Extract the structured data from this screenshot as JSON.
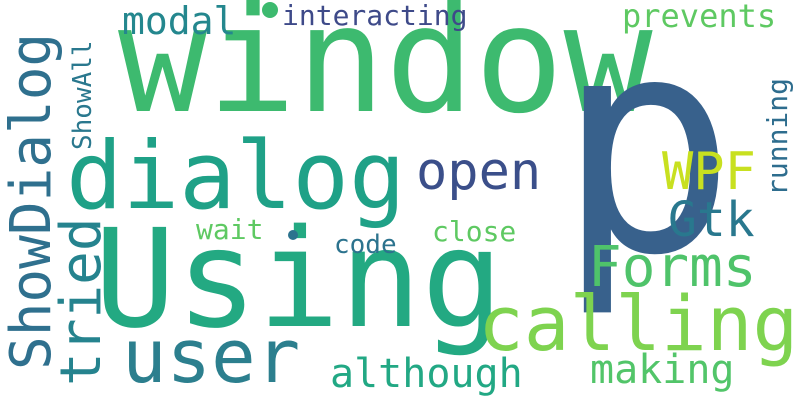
{
  "words": {
    "window": "window",
    "p": "p",
    "using": "Using",
    "dialog": "dialog",
    "calling": "calling",
    "user": "user",
    "showdialog": "ShowDialog",
    "tried": "tried",
    "forms": "Forms",
    "open": "open",
    "wpf": "WPF",
    "gtk": "Gtk",
    "although": "although",
    "making": "making",
    "modal": "modal",
    "interacting": "interacting",
    "prevents": "prevents",
    "running": "running",
    "showall": "ShowAll",
    "wait": "wait",
    "code": "code",
    "close": "close"
  },
  "colors": {
    "window": "#3dba6f",
    "p": "#38618c",
    "using": "#23a982",
    "dialog": "#1fa187",
    "calling": "#7ed34f",
    "user": "#2c7f8e",
    "showdialog": "#2f708e",
    "tried": "#25838e",
    "forms": "#4fc36a",
    "open": "#3b4f8a",
    "wpf": "#c8e020",
    "gtk": "#29788e",
    "although": "#22a884",
    "making": "#52c569",
    "modal": "#24878e",
    "interacting": "#3e4a89",
    "prevents": "#5ec962",
    "running": "#2e6d8e",
    "showall": "#2a788e",
    "wait": "#5ec962",
    "code": "#2c738e",
    "close": "#5ec962"
  }
}
